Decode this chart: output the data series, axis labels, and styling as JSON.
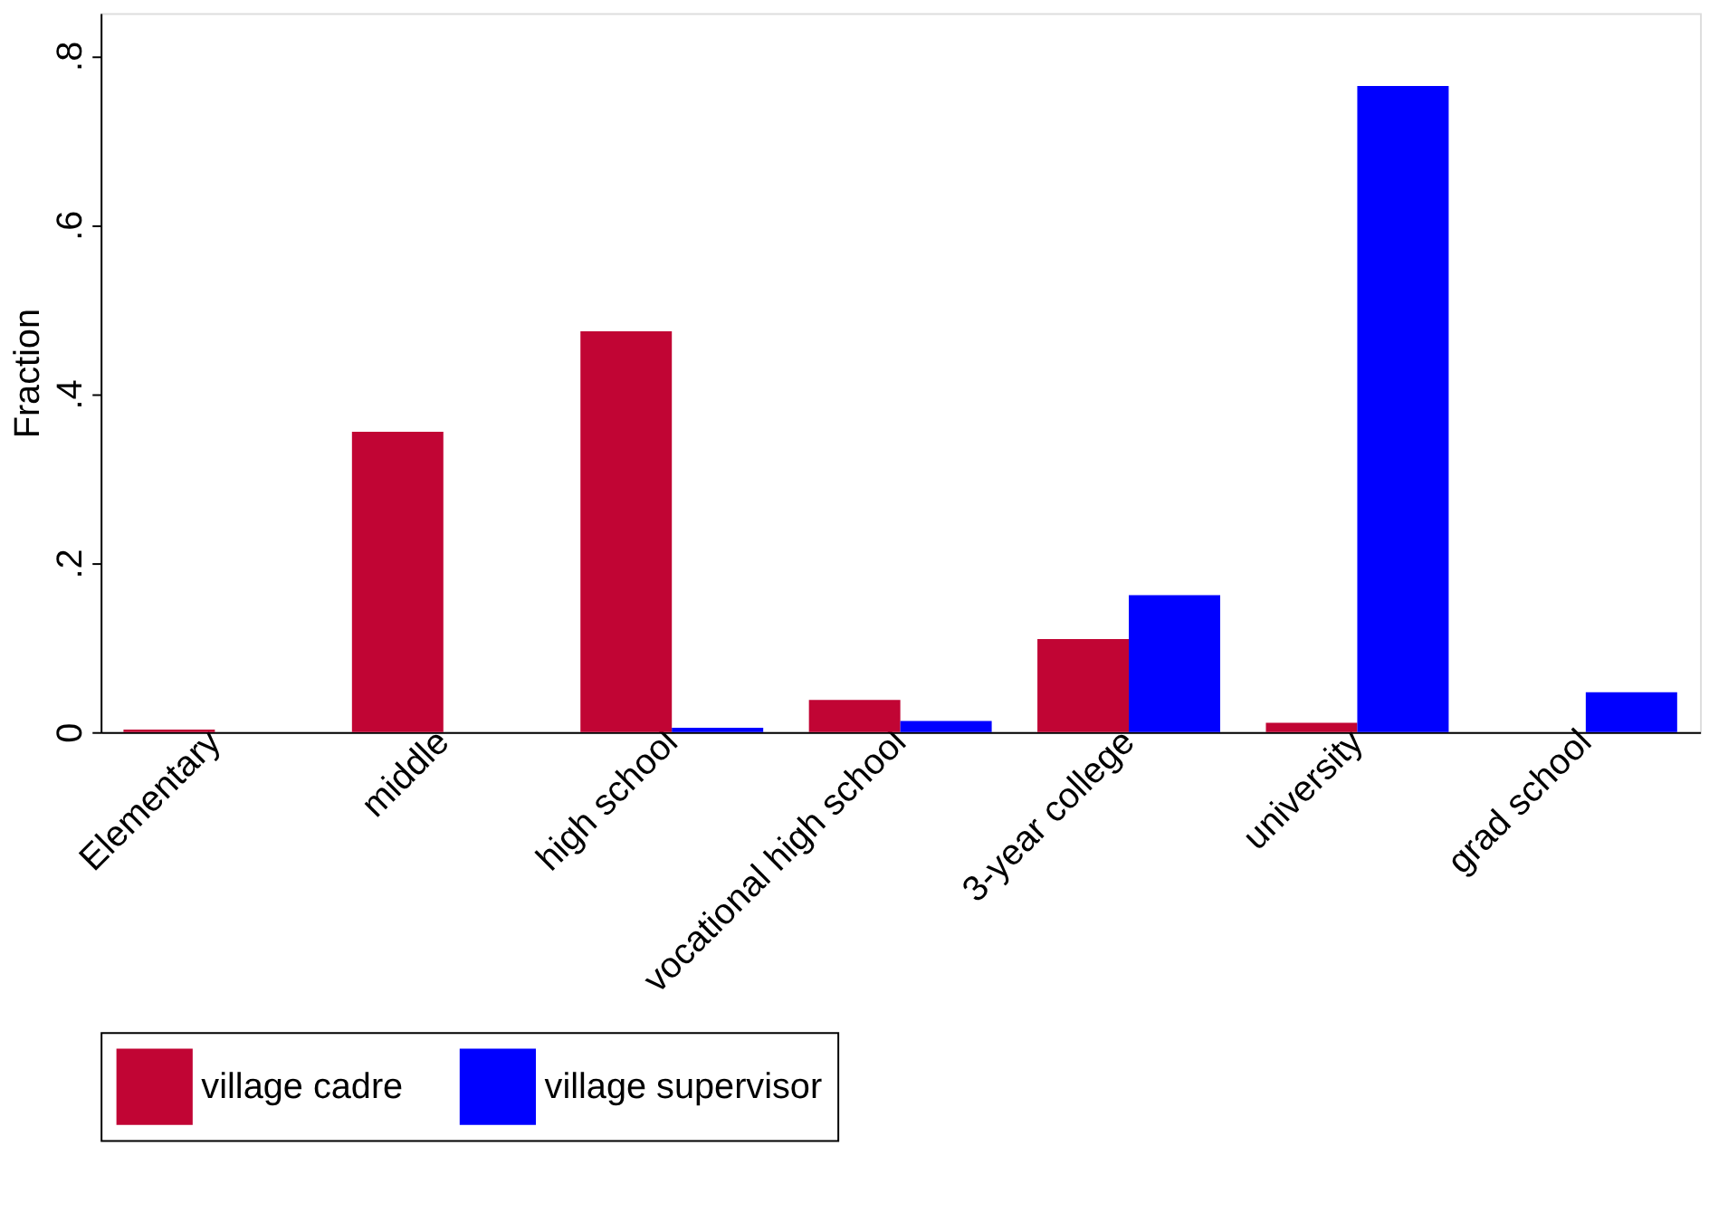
{
  "chart_data": {
    "type": "bar",
    "ylabel": "Fraction",
    "categories": [
      "Elementary",
      "middle",
      "high school",
      "vocational high school",
      "3-year college",
      "university",
      "grad school"
    ],
    "series": [
      {
        "name": "village cadre",
        "color": "#c10534",
        "values": [
          0.003,
          0.355,
          0.474,
          0.038,
          0.11,
          0.011,
          null
        ]
      },
      {
        "name": "village supervisor",
        "color": "#0000ff",
        "values": [
          null,
          null,
          0.005,
          0.013,
          0.162,
          0.764,
          0.047
        ]
      }
    ],
    "ylim": [
      0,
      0.85
    ],
    "yticks": [
      {
        "value": 0,
        "label": "0"
      },
      {
        "value": 0.2,
        "label": ".2"
      },
      {
        "value": 0.4,
        "label": ".4"
      },
      {
        "value": 0.6,
        "label": ".6"
      },
      {
        "value": 0.8,
        "label": ".8"
      }
    ],
    "grid": false,
    "legend": "bottom"
  }
}
